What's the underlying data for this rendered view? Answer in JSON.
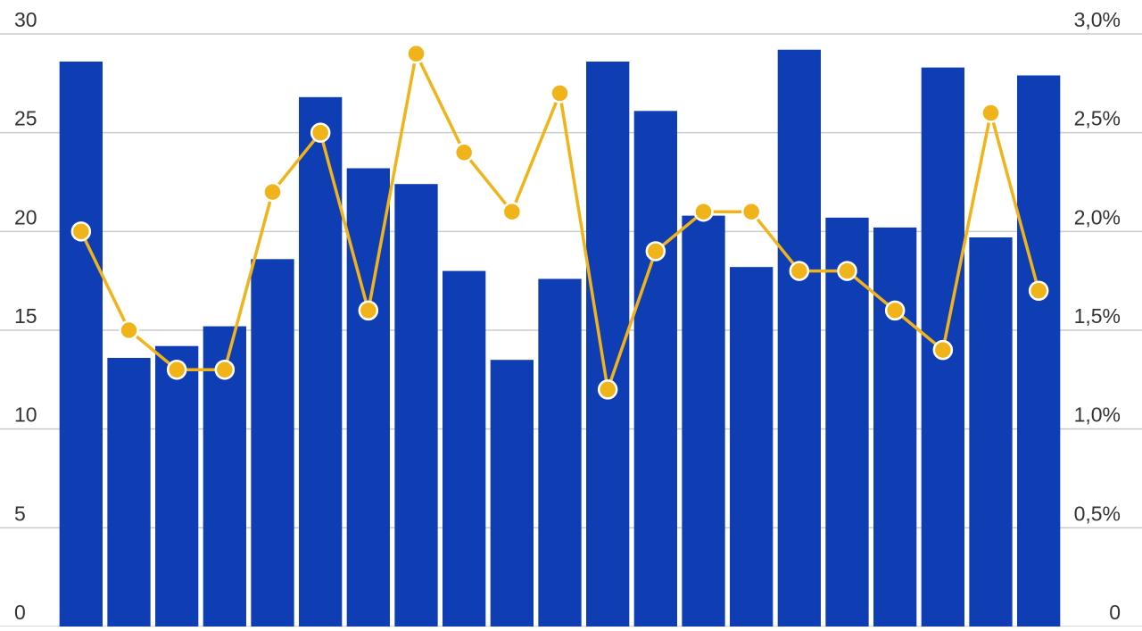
{
  "chart_data": {
    "type": "bar+line",
    "categories": [
      null,
      null,
      null,
      null,
      null,
      null,
      null,
      null,
      null,
      null,
      null,
      null,
      null,
      null,
      null,
      null,
      null,
      null,
      null,
      null,
      null
    ],
    "series": [
      {
        "type": "bar",
        "color": "#0f3db3",
        "values": [
          28.6,
          13.6,
          14.2,
          15.2,
          18.6,
          26.8,
          23.2,
          22.4,
          18.0,
          13.5,
          17.6,
          28.6,
          26.1,
          20.8,
          18.2,
          29.2,
          20.7,
          20.2,
          28.3,
          19.7,
          27.9
        ]
      },
      {
        "type": "line",
        "axis": "y2",
        "color": "#f0b41a",
        "values": [
          2.0,
          1.5,
          1.3,
          1.3,
          2.2,
          2.5,
          1.6,
          2.9,
          2.4,
          2.1,
          2.7,
          1.2,
          1.9,
          2.1,
          2.1,
          1.8,
          1.8,
          1.6,
          1.4,
          2.6,
          1.7
        ]
      }
    ],
    "ylim": [
      0,
      30
    ],
    "yticks": [
      0,
      5,
      10,
      15,
      20,
      25,
      30
    ],
    "y2lim": [
      0,
      3
    ],
    "y2ticks": [
      0,
      {
        "value": 0.5,
        "label": "0,5%"
      },
      {
        "value": 1.0,
        "label": "1,0%"
      },
      {
        "value": 1.5,
        "label": "1,5%"
      },
      {
        "value": 2.0,
        "label": "2,0%"
      },
      {
        "value": 2.5,
        "label": "2,5%"
      },
      {
        "value": 3.0,
        "label": "3,0%"
      }
    ],
    "grid": true
  }
}
